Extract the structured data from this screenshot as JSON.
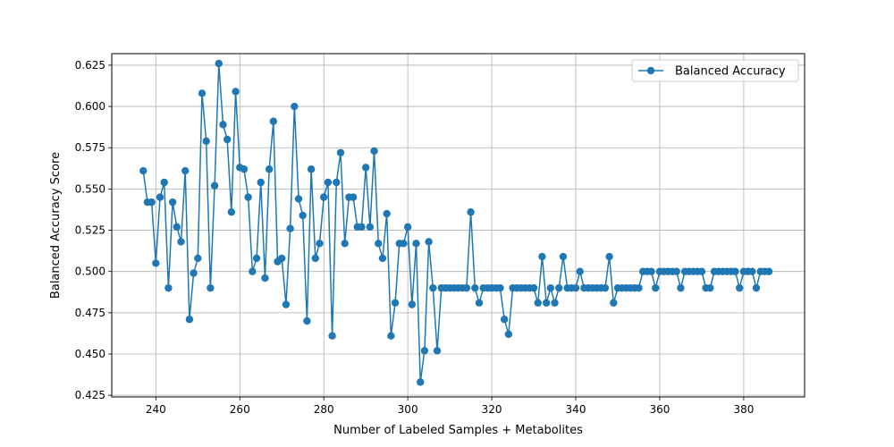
{
  "chart_data": {
    "type": "line",
    "title": "",
    "xlabel": "Number of Labeled Samples + Metabolites",
    "ylabel": "Balanced Accuracy Score",
    "xlim": [
      229.5,
      394.5
    ],
    "ylim": [
      0.424,
      0.632
    ],
    "xticks": [
      "240",
      "260",
      "280",
      "300",
      "320",
      "340",
      "360",
      "380"
    ],
    "yticks": [
      "0.425",
      "0.450",
      "0.475",
      "0.500",
      "0.525",
      "0.550",
      "0.575",
      "0.600",
      "0.625"
    ],
    "grid": true,
    "legend_position": "top-right",
    "series_color": "#1f77b4",
    "series": [
      {
        "name": "Balanced Accuracy",
        "x": [
          237,
          238,
          239,
          240,
          241,
          242,
          243,
          244,
          245,
          246,
          247,
          248,
          249,
          250,
          251,
          252,
          253,
          254,
          255,
          256,
          257,
          258,
          259,
          260,
          261,
          262,
          263,
          264,
          265,
          266,
          267,
          268,
          269,
          270,
          271,
          272,
          273,
          274,
          275,
          276,
          277,
          278,
          279,
          280,
          281,
          282,
          283,
          284,
          285,
          286,
          287,
          288,
          289,
          290,
          291,
          292,
          293,
          294,
          295,
          296,
          297,
          298,
          299,
          300,
          301,
          302,
          303,
          304,
          305,
          306,
          307,
          308,
          309,
          310,
          311,
          312,
          313,
          314,
          315,
          316,
          317,
          318,
          319,
          320,
          321,
          322,
          323,
          324,
          325,
          326,
          327,
          328,
          329,
          330,
          331,
          332,
          333,
          334,
          335,
          336,
          337,
          338,
          339,
          340,
          341,
          342,
          343,
          344,
          345,
          346,
          347,
          348,
          349,
          350,
          351,
          352,
          353,
          354,
          355,
          356,
          357,
          358,
          359,
          360,
          361,
          362,
          363,
          364,
          365,
          366,
          367,
          368,
          369,
          370,
          371,
          372,
          373,
          374,
          375,
          376,
          377,
          378,
          379,
          380,
          381,
          382,
          383,
          384,
          385,
          386
        ],
        "values": [
          0.561,
          0.542,
          0.542,
          0.505,
          0.545,
          0.554,
          0.49,
          0.542,
          0.527,
          0.518,
          0.561,
          0.471,
          0.499,
          0.508,
          0.608,
          0.579,
          0.49,
          0.552,
          0.626,
          0.589,
          0.58,
          0.536,
          0.609,
          0.563,
          0.562,
          0.545,
          0.5,
          0.508,
          0.554,
          0.496,
          0.562,
          0.591,
          0.506,
          0.508,
          0.48,
          0.526,
          0.6,
          0.544,
          0.534,
          0.47,
          0.562,
          0.508,
          0.517,
          0.545,
          0.554,
          0.461,
          0.554,
          0.572,
          0.517,
          0.545,
          0.545,
          0.527,
          0.527,
          0.563,
          0.527,
          0.573,
          0.517,
          0.508,
          0.535,
          0.461,
          0.481,
          0.517,
          0.517,
          0.527,
          0.48,
          0.517,
          0.433,
          0.452,
          0.518,
          0.49,
          0.452,
          0.49,
          0.49,
          0.49,
          0.49,
          0.49,
          0.49,
          0.49,
          0.536,
          0.49,
          0.481,
          0.49,
          0.49,
          0.49,
          0.49,
          0.49,
          0.471,
          0.462,
          0.49,
          0.49,
          0.49,
          0.49,
          0.49,
          0.49,
          0.481,
          0.509,
          0.481,
          0.49,
          0.481,
          0.49,
          0.509,
          0.49,
          0.49,
          0.49,
          0.5,
          0.49,
          0.49,
          0.49,
          0.49,
          0.49,
          0.49,
          0.509,
          0.481,
          0.49,
          0.49,
          0.49,
          0.49,
          0.49,
          0.49,
          0.5,
          0.5,
          0.5,
          0.49,
          0.5,
          0.5,
          0.5,
          0.5,
          0.5,
          0.49,
          0.5,
          0.5,
          0.5,
          0.5,
          0.5,
          0.49,
          0.49,
          0.5,
          0.5,
          0.5,
          0.5,
          0.5,
          0.5,
          0.49,
          0.5,
          0.5,
          0.5,
          0.49,
          0.5,
          0.5,
          0.5
        ]
      }
    ]
  }
}
